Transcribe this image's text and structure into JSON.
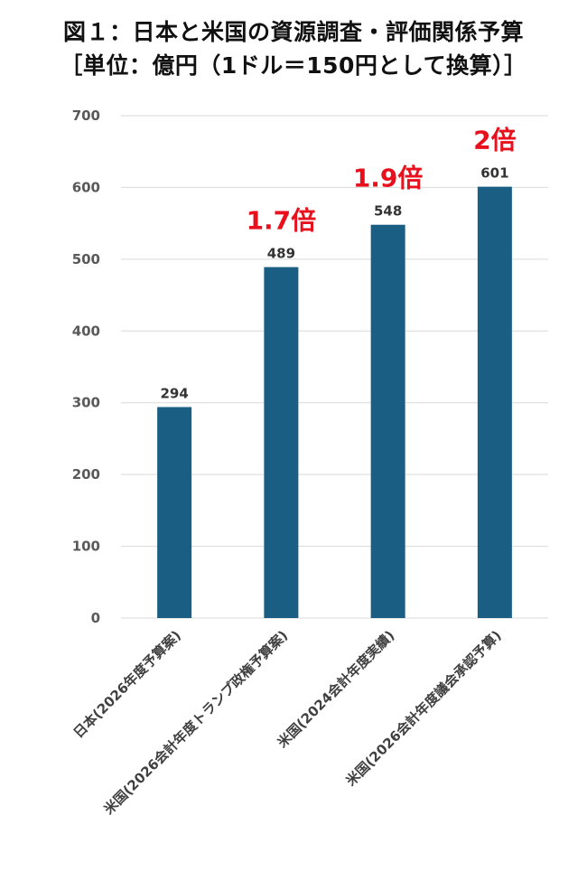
{
  "title": "図１：日本と米国の資源調査・評価関係予算",
  "subtitle": "［単位：億円（1ドル＝150円として換算）］",
  "chart_data": {
    "type": "bar",
    "categories": [
      "日本(2026年度予算案)",
      "米国(2026会計年度トランプ政権予算案)",
      "米国(2024会計年度実績)",
      "米国(2026会計年度議会承認予算)"
    ],
    "values": [
      294,
      489,
      548,
      601
    ],
    "ratio_labels": [
      "",
      "1.7倍",
      "1.9倍",
      "2倍"
    ],
    "ylim": [
      0,
      700
    ],
    "yticks": [
      0,
      100,
      200,
      300,
      400,
      500,
      600,
      700
    ],
    "grid": true,
    "bar_color": "#1b5e84",
    "ratio_color": "#e8101c",
    "grid_color": "#d9d9d9",
    "tick_color": "#595959"
  }
}
